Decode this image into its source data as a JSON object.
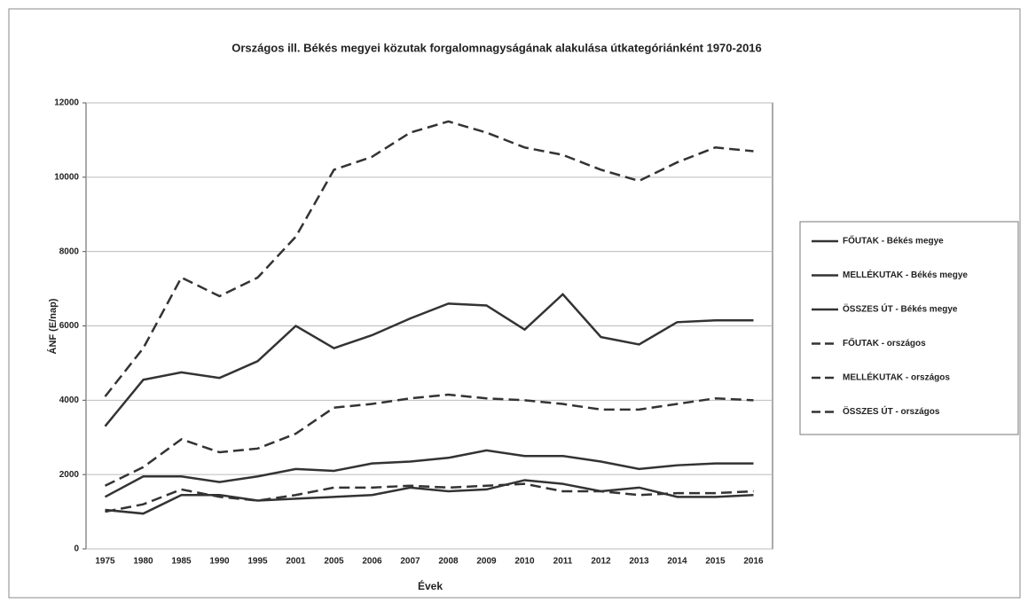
{
  "chart_data": {
    "type": "line",
    "title": "Országos ill. Békés megyei közutak forgalomnagyságának alakulása útkategóriánként 1970-2016",
    "x_label": "Évek",
    "y_label": "ÁNF (E/nap)",
    "categories": [
      "1975",
      "1980",
      "1985",
      "1990",
      "1995",
      "2001",
      "2005",
      "2006",
      "2007",
      "2008",
      "2009",
      "2010",
      "2011",
      "2012",
      "2013",
      "2014",
      "2015",
      "2016"
    ],
    "ylim": [
      0,
      12000
    ],
    "yticks": [
      0,
      2000,
      4000,
      6000,
      8000,
      10000,
      12000
    ],
    "grid": true,
    "legend": "right",
    "series": [
      {
        "name": "FŐUTAK - Békés megye",
        "color": "#333333",
        "line_style": "solid",
        "values": [
          3300,
          4550,
          4750,
          4600,
          5050,
          6000,
          5400,
          5750,
          6200,
          6600,
          6550,
          5900,
          6850,
          5700,
          5500,
          6100,
          6150,
          6150
        ]
      },
      {
        "name": "MELLÉKUTAK - Békés megye",
        "color": "#333333",
        "line_style": "solid",
        "values": [
          1050,
          950,
          1450,
          1450,
          1300,
          1350,
          1400,
          1450,
          1650,
          1550,
          1600,
          1850,
          1750,
          1550,
          1650,
          1400,
          1400,
          1450
        ]
      },
      {
        "name": "ÖSSZES ÚT - Békés megye",
        "color": "#333333",
        "line_style": "solid",
        "values": [
          1400,
          1950,
          1950,
          1800,
          1950,
          2150,
          2100,
          2300,
          2350,
          2450,
          2650,
          2500,
          2500,
          2350,
          2150,
          2250,
          2300,
          2300
        ]
      },
      {
        "name": "FŐUTAK - országos",
        "color": "#333333",
        "line_style": "dashed",
        "values": [
          4100,
          5400,
          7300,
          6800,
          7300,
          8400,
          10200,
          10550,
          11200,
          11500,
          11200,
          10800,
          10600,
          10200,
          9900,
          10400,
          10800,
          10700
        ]
      },
      {
        "name": "MELLÉKUTAK - országos",
        "color": "#333333",
        "line_style": "dashed",
        "values": [
          1000,
          1200,
          1600,
          1400,
          1300,
          1450,
          1650,
          1650,
          1700,
          1650,
          1700,
          1750,
          1550,
          1550,
          1450,
          1500,
          1500,
          1550
        ]
      },
      {
        "name": "ÖSSZES ÚT - országos",
        "color": "#333333",
        "line_style": "dashed",
        "values": [
          1700,
          2200,
          2950,
          2600,
          2700,
          3100,
          3800,
          3900,
          4050,
          4150,
          4050,
          4000,
          3900,
          3750,
          3750,
          3900,
          4050,
          4000
        ]
      }
    ]
  }
}
